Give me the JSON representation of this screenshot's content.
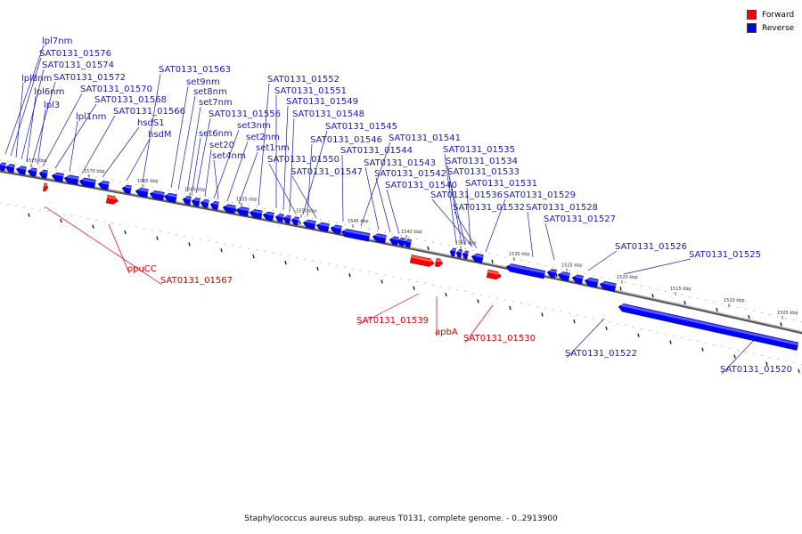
{
  "legend": [
    {
      "label": "Forward",
      "color": "#ff0000"
    },
    {
      "label": "Reverse",
      "color": "#0000ff"
    }
  ],
  "caption": "Staphylococcus aureus subsp. aureus T0131, complete genome. - 0..2913900",
  "colors": {
    "forward": "#ff0000",
    "reverse": "#0000ff",
    "forward_label": "#cc0000",
    "reverse_label": "#1a1aaa",
    "backbone": "#808080"
  },
  "ticks": [
    "1575 kbp",
    "1570 kbp",
    "1565 kbp",
    "1560 kbp",
    "1555 kbp",
    "1550 kbp",
    "1545 kbp",
    "1540 kbp",
    "1535 kbp",
    "1530 kbp",
    "1525 kbp",
    "1520 kbp",
    "1515 kbp",
    "1510 kbp",
    "1505 kbp"
  ],
  "reverse_labels": [
    "lpl7nm",
    "SAT0131_01576",
    "SAT0131_01574",
    "lpl8nm",
    "SAT0131_01572",
    "lpl6nm",
    "SAT0131_01570",
    "lpl3",
    "SAT0131_01568",
    "lpl1nm",
    "SAT0131_01566",
    "hsdS1",
    "hsdM",
    "SAT0131_01563",
    "set9nm",
    "set8nm",
    "set7nm",
    "SAT0131_01556",
    "set6nm",
    "set3nm",
    "set20",
    "set2nm",
    "set4nm",
    "set1nm",
    "SAT0131_01552",
    "SAT0131_01551",
    "SAT0131_01549",
    "SAT0131_01548",
    "SAT0131_01545",
    "SAT0131_01546",
    "SAT0131_01550",
    "SAT0131_01547",
    "SAT0131_01544",
    "SAT0131_01541",
    "SAT0131_01543",
    "SAT0131_01542",
    "SAT0131_01540",
    "SAT0131_01535",
    "SAT0131_01534",
    "SAT0131_01533",
    "SAT0131_01531",
    "SAT0131_01536",
    "SAT0131_01529",
    "SAT0131_01532",
    "SAT0131_01528",
    "SAT0131_01527",
    "SAT0131_01526",
    "SAT0131_01525",
    "SAT0131_01522",
    "SAT0131_01520"
  ],
  "forward_labels": [
    "opuCC",
    "SAT0131_01567",
    "SAT0131_01539",
    "apbA",
    "SAT0131_01530"
  ]
}
